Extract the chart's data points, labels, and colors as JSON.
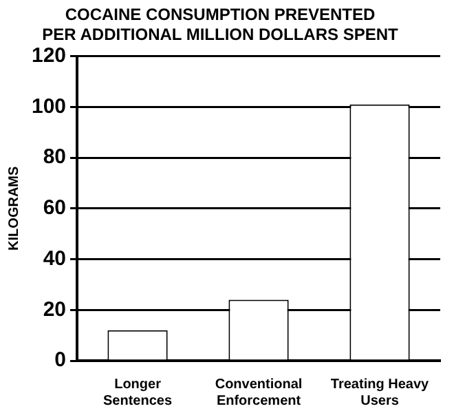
{
  "chart_data": {
    "type": "bar",
    "title": "COCAINE CONSUMPTION PREVENTED\nPER ADDITIONAL MILLION DOLLARS SPENT",
    "ylabel": "KILOGRAMS",
    "categories": [
      [
        "Longer",
        "Sentences"
      ],
      [
        "Conventional",
        "Enforcement"
      ],
      [
        "Treating Heavy",
        "Users"
      ]
    ],
    "values": [
      12,
      24,
      101
    ],
    "color": "#ffffff",
    "ylim": [
      0,
      120
    ],
    "yticks": [
      0,
      20,
      40,
      60,
      80,
      100,
      120
    ],
    "grid": "y"
  }
}
